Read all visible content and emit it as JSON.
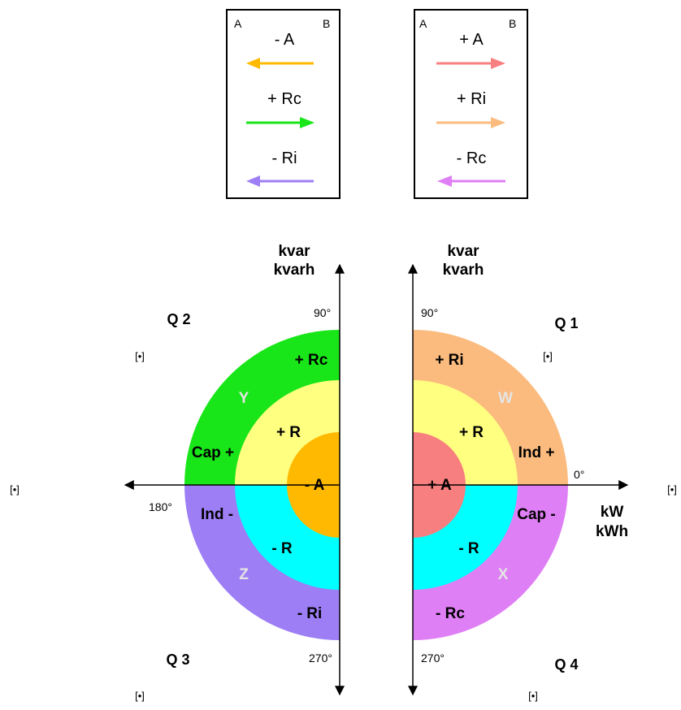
{
  "legend_boxes": [
    {
      "corner_left": "A",
      "corner_right": "B",
      "entries": [
        {
          "label": "- A",
          "color": "#ffb900",
          "direction": "left"
        },
        {
          "label": "+ Rc",
          "color": "#19e619",
          "direction": "right"
        },
        {
          "label": "- Ri",
          "color": "#9d7ef5",
          "direction": "left"
        }
      ]
    },
    {
      "corner_left": "A",
      "corner_right": "B",
      "entries": [
        {
          "label": "+ A",
          "color": "#f87f7f",
          "direction": "right"
        },
        {
          "label": "+ Ri",
          "color": "#fbbb7f",
          "direction": "right"
        },
        {
          "label": "- Rc",
          "color": "#df7ff5",
          "direction": "left"
        }
      ]
    }
  ],
  "axes": {
    "left_vertical_label": [
      "kvar",
      "kvarh"
    ],
    "right_vertical_label": [
      "kvar",
      "kvarh"
    ],
    "horizontal_label": [
      "kW",
      "kWh"
    ],
    "deg_90_left": "90°",
    "deg_90_right": "90°",
    "deg_180": "180°",
    "deg_0": "0°",
    "deg_270_left": "270°",
    "deg_270_right": "270°"
  },
  "quadrants": {
    "q1": "Q 1",
    "q2": "Q 2",
    "q3": "Q 3",
    "q4": "Q 4"
  },
  "reference_marker": "[•]",
  "left_half": {
    "upper_outer": {
      "label": "+ Rc",
      "color": "#19e619"
    },
    "upper_mid": {
      "label": "+ R",
      "color": "#ffff80"
    },
    "lower_outer": {
      "label": "- Ri",
      "color": "#9d7ef5"
    },
    "lower_mid": {
      "label": "- R",
      "color": "#00ffff"
    },
    "center": {
      "label": "- A",
      "color": "#ffb900"
    },
    "side_upper": "Cap +",
    "side_lower": "Ind -",
    "ghost_upper": "Y",
    "ghost_lower": "Z"
  },
  "right_half": {
    "upper_outer": {
      "label": "+ Ri",
      "color": "#fbbb7f"
    },
    "upper_mid": {
      "label": "+ R",
      "color": "#ffff80"
    },
    "lower_outer": {
      "label": "- Rc",
      "color": "#df7ff5"
    },
    "lower_mid": {
      "label": "- R",
      "color": "#00ffff"
    },
    "center": {
      "label": "+ A",
      "color": "#f87f7f"
    },
    "side_upper": "Ind +",
    "side_lower": "Cap -",
    "ghost_upper": "W",
    "ghost_lower": "X"
  }
}
